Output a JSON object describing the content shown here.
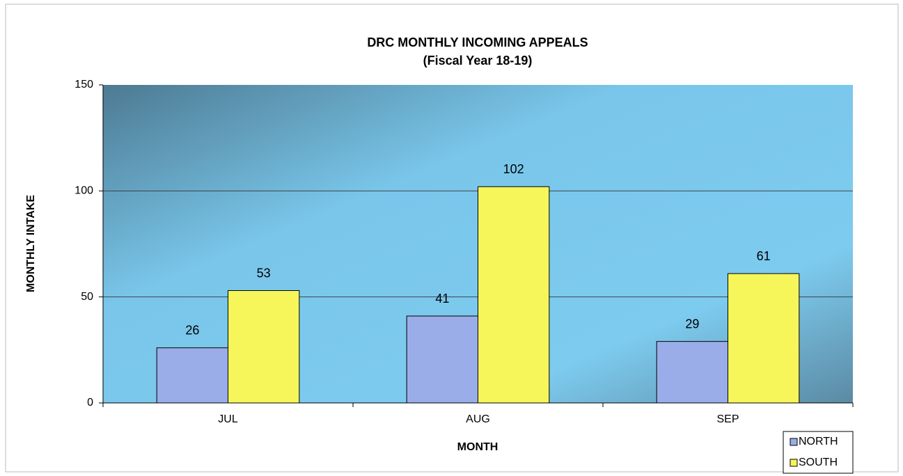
{
  "chart_data": {
    "type": "bar",
    "title": "DRC MONTHLY INCOMING APPEALS",
    "subtitle": "(Fiscal Year 18-19)",
    "x_label": "MONTH",
    "y_label": "MONTHLY INTAKE",
    "categories": [
      "JUL",
      "AUG",
      "SEP"
    ],
    "series": [
      {
        "name": "NORTH",
        "color": "#9aade8",
        "values": [
          26,
          41,
          29
        ]
      },
      {
        "name": "SOUTH",
        "color": "#f6f65a",
        "values": [
          53,
          102,
          61
        ]
      }
    ],
    "ylim": [
      0,
      150
    ],
    "yticks": [
      0,
      50,
      100,
      150
    ],
    "grid": true,
    "legend": "bottom-right"
  }
}
